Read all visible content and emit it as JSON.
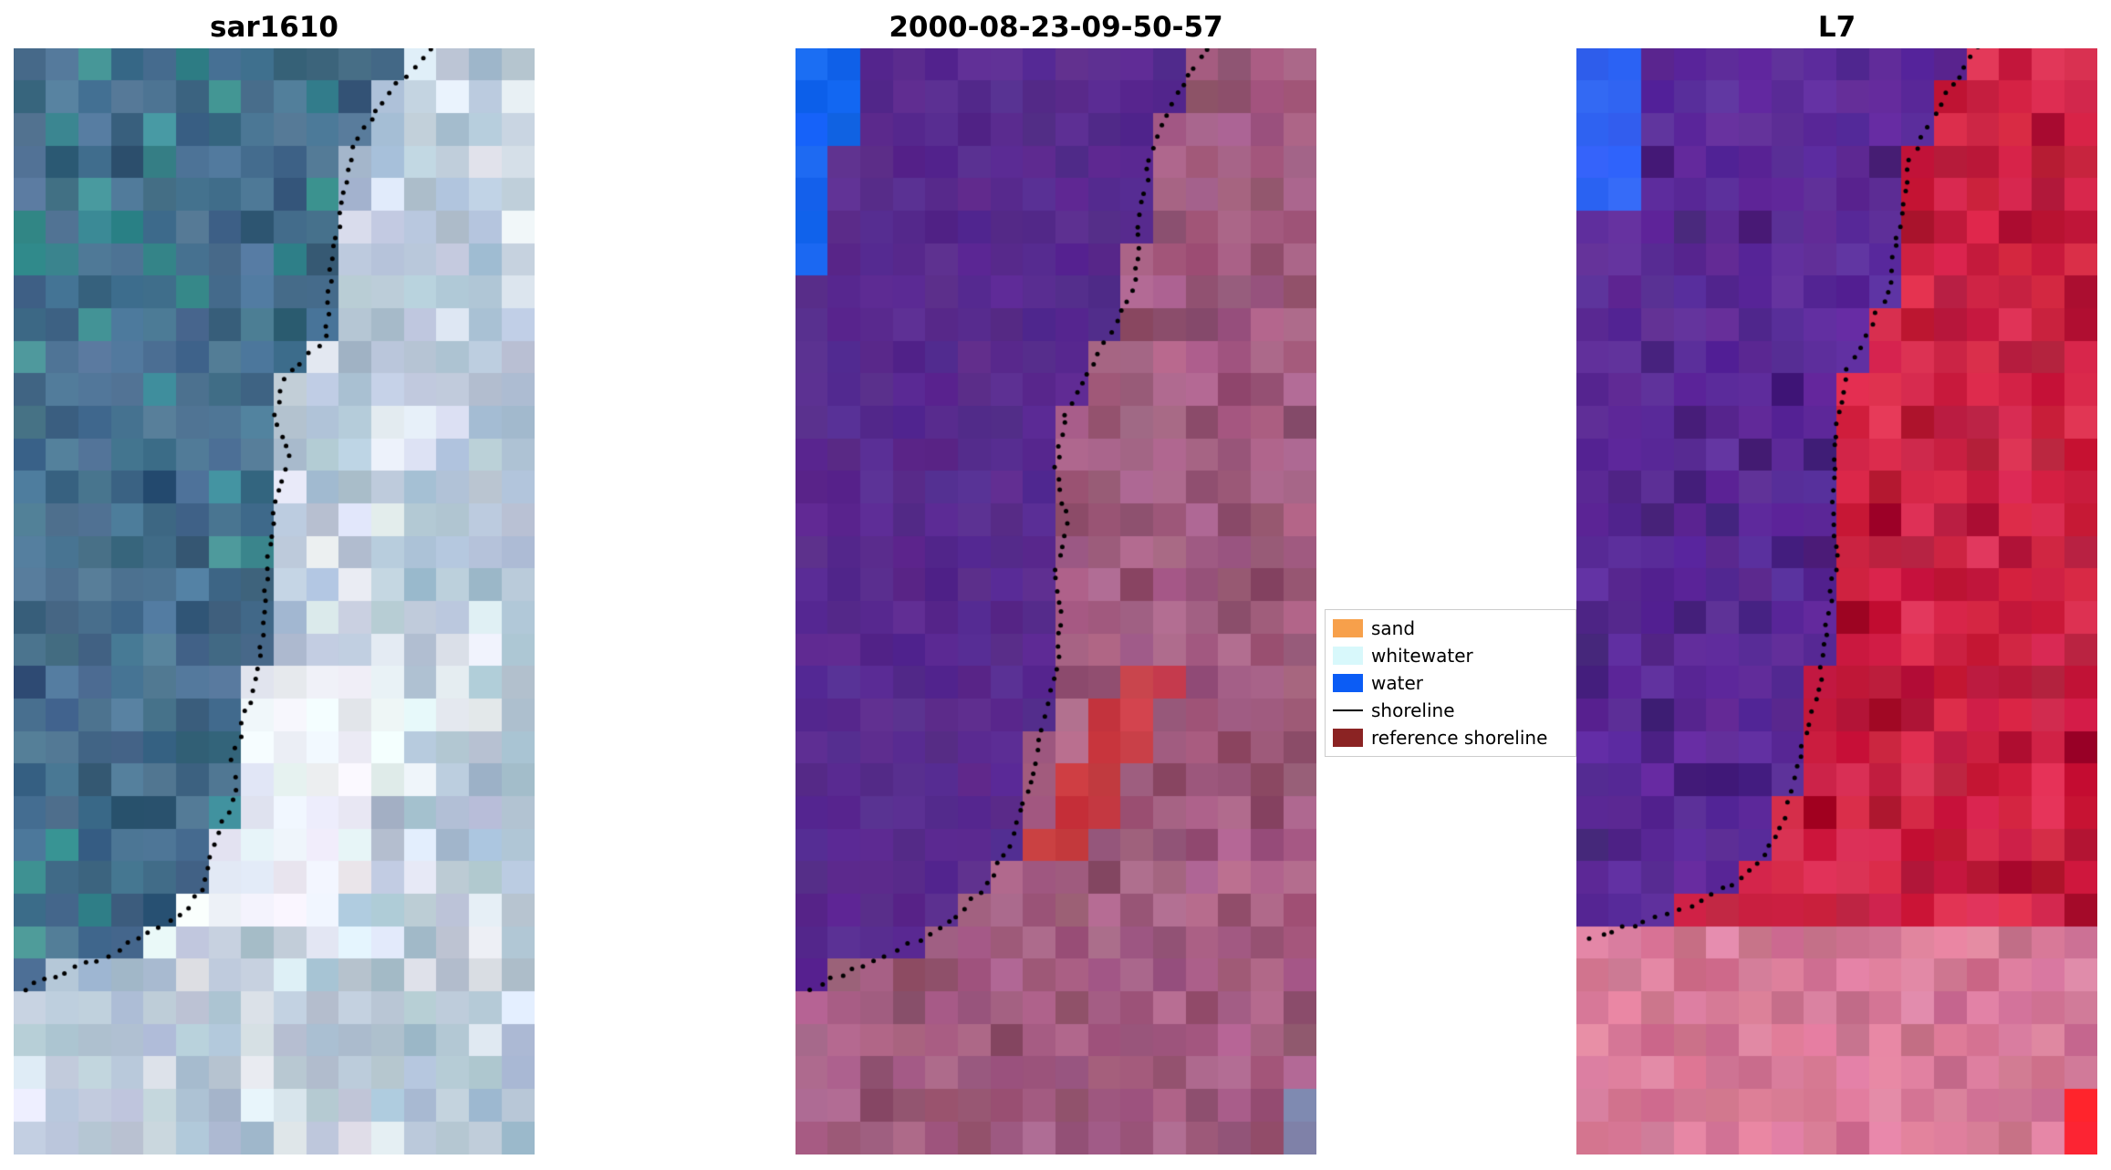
{
  "panels": [
    {
      "title": "sar1610"
    },
    {
      "title": "2000-08-23-09-50-57"
    },
    {
      "title": "L7"
    }
  ],
  "legend": {
    "items": [
      {
        "label": "sand",
        "color": "#f7a04b",
        "type": "patch"
      },
      {
        "label": "whitewater",
        "color": "#d8f8fb",
        "type": "patch"
      },
      {
        "label": "water",
        "color": "#0b5cf5",
        "type": "patch"
      },
      {
        "label": "shoreline",
        "color": "#000000",
        "type": "line"
      },
      {
        "label": "reference shoreline",
        "color": "#8b2323",
        "type": "patch"
      }
    ]
  },
  "chart_data": {
    "type": "heatmap",
    "description": "Three-panel coastal satellite shoreline-detection figure (matplotlib style). Left panel 'sar1610' is an RGB/SAR image with blue-teal water and a bright white sand spit. Middle panel '2000-08-23-09-50-57' is a classified image: purple = classified water mask, mauve/pink = land, bright blue patch = water pixels, red patch = reference shoreline buffer area. Right panel 'L7' is a Landsat-7 false-colour classified image: purple water mask over red land. A dotted black line marks the detected shoreline in every panel.",
    "legend_entries": [
      "sand",
      "whitewater",
      "water",
      "shoreline",
      "reference shoreline"
    ],
    "panels": [
      {
        "name": "sar1610",
        "style": "sar",
        "seed": 1610,
        "palette": {
          "water": "#48708f",
          "teal": "#3c8c91",
          "deep": "#365c7c",
          "land": "#b9c8d8",
          "mid": "#a8bed2",
          "pale": "#e2e9f2",
          "bright": "#ecf2f8"
        },
        "shoreline": [
          [
            0.8,
            0.0
          ],
          [
            0.72,
            0.04
          ],
          [
            0.65,
            0.09
          ],
          [
            0.63,
            0.14
          ],
          [
            0.61,
            0.2
          ],
          [
            0.6,
            0.26
          ],
          [
            0.52,
            0.3
          ],
          [
            0.5,
            0.33
          ],
          [
            0.53,
            0.37
          ],
          [
            0.5,
            0.41
          ],
          [
            0.49,
            0.46
          ],
          [
            0.48,
            0.51
          ],
          [
            0.47,
            0.56
          ],
          [
            0.44,
            0.61
          ],
          [
            0.42,
            0.645
          ],
          [
            0.43,
            0.67
          ],
          [
            0.4,
            0.7
          ],
          [
            0.38,
            0.73
          ],
          [
            0.36,
            0.76
          ],
          [
            0.32,
            0.785
          ],
          [
            0.26,
            0.8
          ],
          [
            0.18,
            0.82
          ],
          [
            0.1,
            0.835
          ],
          [
            0.02,
            0.85
          ],
          [
            0.0,
            0.855
          ]
        ]
      },
      {
        "name": "2000-08-23-09-50-57",
        "style": "cls2",
        "seed": 2000,
        "palette": {
          "water_class": "#582a8e",
          "water_px": "#1563ee",
          "land": "#a65e84",
          "land_dark": "#965574",
          "red": "#c63a44",
          "gray": "#7d87a8"
        },
        "shoreline": [
          [
            0.79,
            0.0
          ],
          [
            0.72,
            0.05
          ],
          [
            0.68,
            0.1
          ],
          [
            0.66,
            0.16
          ],
          [
            0.65,
            0.22
          ],
          [
            0.56,
            0.295
          ],
          [
            0.52,
            0.33
          ],
          [
            0.5,
            0.38
          ],
          [
            0.52,
            0.43
          ],
          [
            0.5,
            0.47
          ],
          [
            0.51,
            0.52
          ],
          [
            0.5,
            0.57
          ],
          [
            0.47,
            0.615
          ],
          [
            0.46,
            0.655
          ],
          [
            0.43,
            0.69
          ],
          [
            0.41,
            0.72
          ],
          [
            0.37,
            0.755
          ],
          [
            0.31,
            0.785
          ],
          [
            0.24,
            0.805
          ],
          [
            0.15,
            0.825
          ],
          [
            0.05,
            0.845
          ],
          [
            0.0,
            0.855
          ]
        ]
      },
      {
        "name": "L7",
        "style": "cls3",
        "seed": 7,
        "palette": {
          "water_class": "#5c2a98",
          "deep": "#46217c",
          "water_px": "#2f62f2",
          "land": "#d22446",
          "crimson": "#b01434",
          "pink": "#d87b99",
          "corner": "#ff2430"
        },
        "shoreline": [
          [
            0.77,
            0.0
          ],
          [
            0.7,
            0.05
          ],
          [
            0.64,
            0.1
          ],
          [
            0.62,
            0.16
          ],
          [
            0.6,
            0.22
          ],
          [
            0.52,
            0.29
          ],
          [
            0.5,
            0.34
          ],
          [
            0.49,
            0.4
          ],
          [
            0.5,
            0.46
          ],
          [
            0.48,
            0.52
          ],
          [
            0.47,
            0.57
          ],
          [
            0.44,
            0.62
          ],
          [
            0.42,
            0.66
          ],
          [
            0.4,
            0.695
          ],
          [
            0.36,
            0.73
          ],
          [
            0.3,
            0.755
          ],
          [
            0.22,
            0.775
          ],
          [
            0.13,
            0.79
          ],
          [
            0.05,
            0.8
          ],
          [
            0.0,
            0.81
          ]
        ]
      }
    ]
  }
}
